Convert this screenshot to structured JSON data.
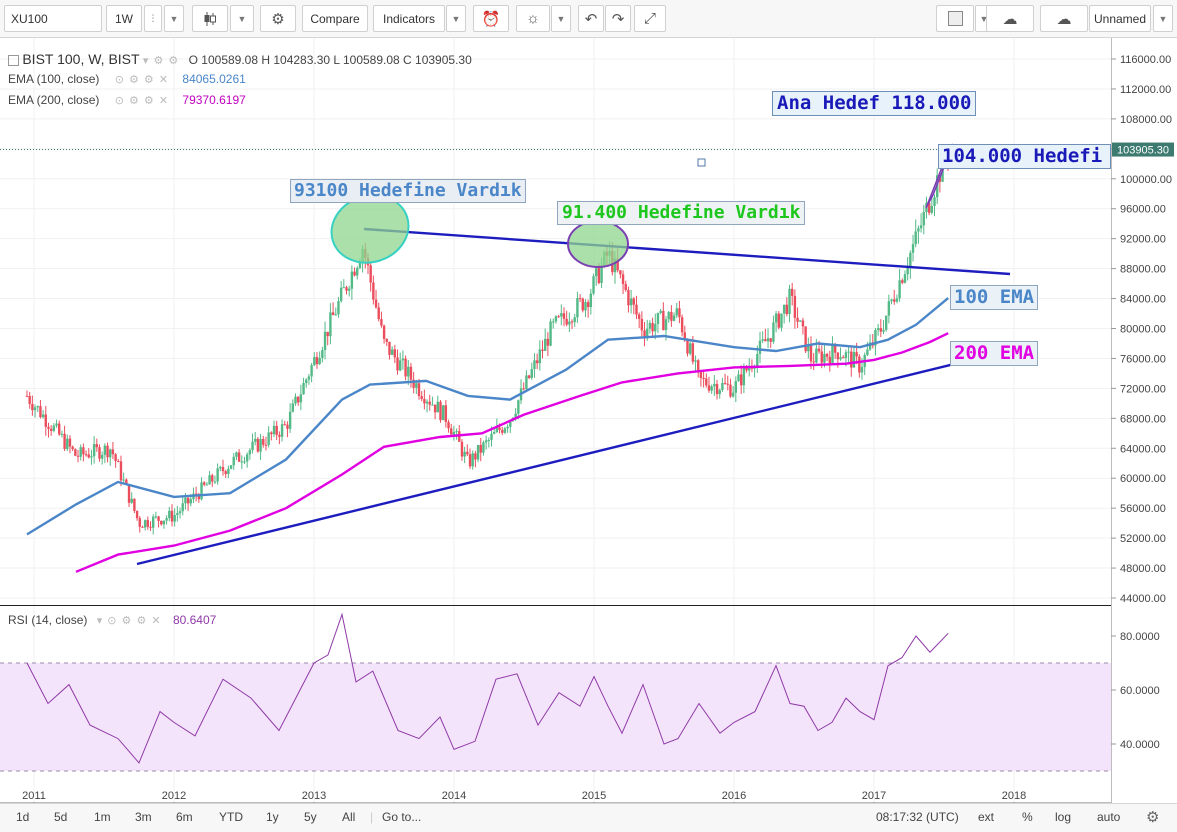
{
  "toolbar": {
    "symbol": "XU100",
    "interval": "1W",
    "compare": "Compare",
    "indicators": "Indicators",
    "layout_name": "Unnamed"
  },
  "legend": {
    "title": "BIST 100, W, BIST",
    "ohlc": "O 100589.08 H 104283.30 L 100589.08 C 103905.30",
    "ema100_label": "EMA (100, close)",
    "ema100_value": "84065.0261",
    "ema200_label": "EMA (200, close)",
    "ema200_value": "79370.6197",
    "rsi_label": "RSI (14, close)",
    "rsi_value": "80.6407"
  },
  "colors": {
    "up": "#53b987",
    "down": "#eb4d5c",
    "ema100": "#4a86c8",
    "ema200": "#e100e1",
    "trend": "#1d1dbf",
    "rsi": "#8e3aa6",
    "rsi_band": "#f4e4fb"
  },
  "annotations": {
    "target_main": "Ana Hedef 118.000",
    "target_93100": "93100 Hedefine Vardık",
    "target_91400": "91.400 Hedefine Vardık",
    "target_104000": "104.000 Hedefi",
    "ema100": "100 EMA",
    "ema200": "200 EMA"
  },
  "bottom_bar": {
    "ranges": [
      "1d",
      "5d",
      "1m",
      "3m",
      "6m",
      "YTD",
      "1y",
      "5y",
      "All"
    ],
    "goto": "Go to...",
    "time": "08:17:32 (UTC)",
    "ext": "ext",
    "percent": "%",
    "log": "log",
    "auto": "auto"
  },
  "chart_data": [
    {
      "type": "candlestick",
      "title": "BIST 100, W, BIST",
      "x_tick_labels": [
        "2011",
        "2012",
        "2013",
        "2014",
        "2015",
        "2016",
        "2017",
        "2018"
      ],
      "y_tick_labels": [
        "44000.00",
        "48000.00",
        "52000.00",
        "56000.00",
        "60000.00",
        "64000.00",
        "68000.00",
        "72000.00",
        "76000.00",
        "80000.00",
        "84000.00",
        "88000.00",
        "92000.00",
        "96000.00",
        "100000.00",
        "104000.00",
        "108000.00",
        "112000.00",
        "116000.00"
      ],
      "ylim": [
        43000,
        117500
      ],
      "last_price_label": "103905.30",
      "series": [
        {
          "name": "EMA (100, close)",
          "x": [
            2010.95,
            2011.3,
            2011.6,
            2012.0,
            2012.4,
            2012.8,
            2013.2,
            2013.4,
            2013.8,
            2014.1,
            2014.4,
            2014.8,
            2015.1,
            2015.5,
            2016.0,
            2016.3,
            2016.6,
            2016.9,
            2017.1,
            2017.3,
            2017.53
          ],
          "y": [
            52500,
            56500,
            59500,
            57500,
            58000,
            62500,
            70500,
            72500,
            73000,
            71000,
            70500,
            74500,
            78500,
            79000,
            77500,
            77000,
            78000,
            77500,
            78500,
            80500,
            84065
          ]
        },
        {
          "name": "EMA (200, close)",
          "x": [
            2011.3,
            2011.6,
            2012.0,
            2012.4,
            2012.8,
            2013.2,
            2013.5,
            2013.9,
            2014.2,
            2014.5,
            2014.9,
            2015.2,
            2015.6,
            2016.0,
            2016.4,
            2016.8,
            2017.0,
            2017.2,
            2017.4,
            2017.53
          ],
          "y": [
            47500,
            49800,
            51000,
            53000,
            56000,
            60500,
            64200,
            65500,
            66000,
            68500,
            71000,
            72800,
            74000,
            74800,
            75000,
            75300,
            75800,
            76800,
            78200,
            79370
          ]
        }
      ]
    },
    {
      "type": "line",
      "title": "RSI (14, close)",
      "y_tick_labels": [
        "40.0000",
        "60.0000",
        "80.0000"
      ],
      "ylim": [
        28,
        92
      ],
      "bands": [
        30,
        70
      ],
      "series": [
        {
          "name": "RSI (14, close)",
          "x": [
            2010.95,
            2011.1,
            2011.25,
            2011.4,
            2011.6,
            2011.75,
            2011.9,
            2012.0,
            2012.15,
            2012.35,
            2012.55,
            2012.75,
            2012.9,
            2013.0,
            2013.1,
            2013.2,
            2013.3,
            2013.42,
            2013.6,
            2013.75,
            2013.9,
            2014.0,
            2014.15,
            2014.3,
            2014.45,
            2014.6,
            2014.75,
            2014.9,
            2015.0,
            2015.1,
            2015.2,
            2015.35,
            2015.5,
            2015.6,
            2015.75,
            2015.9,
            2016.0,
            2016.15,
            2016.3,
            2016.4,
            2016.5,
            2016.6,
            2016.7,
            2016.8,
            2016.9,
            2017.0,
            2017.1,
            2017.2,
            2017.3,
            2017.4,
            2017.53
          ],
          "y": [
            70,
            55,
            62,
            47,
            42,
            33,
            52,
            48,
            43,
            64,
            57,
            45,
            60,
            70,
            73,
            88,
            63,
            67,
            45,
            42,
            50,
            38,
            41,
            64,
            66,
            47,
            59,
            54,
            65,
            54,
            44,
            62,
            40,
            42,
            55,
            44,
            48,
            52,
            69,
            55,
            54,
            45,
            48,
            57,
            52,
            49,
            69,
            72,
            80,
            74,
            81
          ]
        }
      ]
    }
  ]
}
